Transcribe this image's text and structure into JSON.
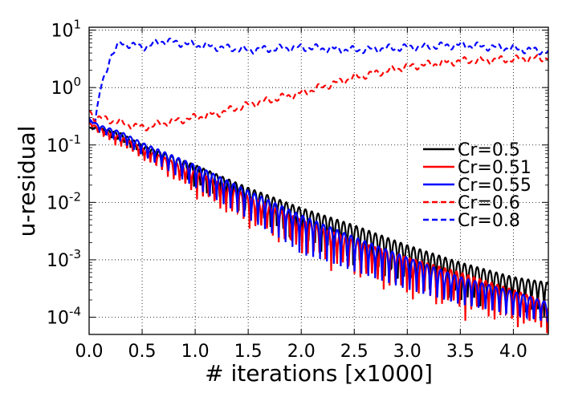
{
  "chart_data": {
    "type": "line",
    "xlabel": "# iterations [x1000]",
    "ylabel": "u-residual",
    "xlim": [
      0,
      4.33
    ],
    "ylim_log10": [
      -4.3,
      1.05
    ],
    "yscale": "log",
    "grid": true,
    "legend_position": "right",
    "xticks": [
      "0.0",
      "0.5",
      "1.0",
      "1.5",
      "2.0",
      "2.5",
      "3.0",
      "3.5",
      "4.0"
    ],
    "yticks": [
      {
        "base": "10",
        "exp": "1",
        "log": 1
      },
      {
        "base": "10",
        "exp": "0",
        "log": 0
      },
      {
        "base": "10",
        "exp": "-1",
        "log": -1
      },
      {
        "base": "10",
        "exp": "-2",
        "log": -2
      },
      {
        "base": "10",
        "exp": "-3",
        "log": -3
      },
      {
        "base": "10",
        "exp": "-4",
        "log": -4
      }
    ],
    "series": [
      {
        "name": "Cr=0.5",
        "color": "#000000",
        "dash": "solid",
        "kind": "decay",
        "x": [
          0.0,
          0.1,
          0.3,
          0.5,
          1.0,
          1.5,
          2.0,
          2.5,
          3.0,
          3.5,
          4.0,
          4.33
        ],
        "y_envelope": [
          0.2,
          0.2,
          0.16,
          0.1,
          0.045,
          0.018,
          0.008,
          0.004,
          0.0018,
          0.0009,
          0.0005,
          0.0004
        ],
        "y_min": [
          0.2,
          0.15,
          0.1,
          0.06,
          0.014,
          0.004,
          0.0013,
          0.0005,
          0.00025,
          0.00012,
          8e-05,
          7e-05
        ],
        "period": 0.06
      },
      {
        "name": "Cr=0.51",
        "color": "#ff0000",
        "dash": "solid",
        "kind": "decay",
        "x": [
          0.0,
          0.1,
          0.3,
          0.5,
          1.0,
          1.5,
          2.0,
          2.5,
          3.0,
          3.5,
          4.0,
          4.33
        ],
        "y_envelope": [
          0.24,
          0.2,
          0.14,
          0.09,
          0.035,
          0.013,
          0.005,
          0.0022,
          0.0011,
          0.0006,
          0.0003,
          0.00018
        ],
        "y_min": [
          0.24,
          0.13,
          0.08,
          0.05,
          0.01,
          0.0028,
          0.0009,
          0.00035,
          0.00015,
          8e-05,
          5e-05,
          4e-05
        ],
        "period": 0.055
      },
      {
        "name": "Cr=0.55",
        "color": "#0000ff",
        "dash": "solid",
        "kind": "decay",
        "x": [
          0.0,
          0.1,
          0.3,
          0.5,
          1.0,
          1.5,
          2.0,
          2.5,
          3.0,
          3.5,
          4.0,
          4.33
        ],
        "y_envelope": [
          0.28,
          0.22,
          0.17,
          0.11,
          0.045,
          0.016,
          0.006,
          0.0025,
          0.0011,
          0.0005,
          0.00028,
          0.00018
        ],
        "y_min": [
          0.28,
          0.15,
          0.09,
          0.05,
          0.012,
          0.0035,
          0.0011,
          0.0004,
          0.00017,
          9e-05,
          6e-05,
          5e-05
        ],
        "period": 0.065
      },
      {
        "name": "Cr=0.6",
        "color": "#ff0000",
        "dash": "dashed",
        "kind": "smooth",
        "x": [
          0.0,
          0.05,
          0.2,
          0.5,
          0.8,
          1.0,
          1.2,
          1.5,
          2.0,
          2.5,
          3.0,
          3.5,
          4.0,
          4.33
        ],
        "y": [
          0.4,
          0.3,
          0.27,
          0.2,
          0.26,
          0.3,
          0.35,
          0.5,
          0.8,
          1.5,
          2.3,
          2.9,
          3.1,
          3.3
        ]
      },
      {
        "name": "Cr=0.8",
        "color": "#0000ff",
        "dash": "dashed",
        "kind": "smooth",
        "x": [
          0.0,
          0.05,
          0.1,
          0.2,
          0.3,
          0.5,
          0.7,
          1.0,
          1.5,
          2.0,
          2.5,
          3.0,
          3.5,
          4.0,
          4.33
        ],
        "y": [
          0.3,
          0.2,
          0.8,
          3.5,
          6.0,
          5.0,
          6.5,
          5.5,
          4.5,
          5.0,
          4.5,
          5.0,
          5.5,
          4.8,
          4.2
        ]
      }
    ]
  }
}
